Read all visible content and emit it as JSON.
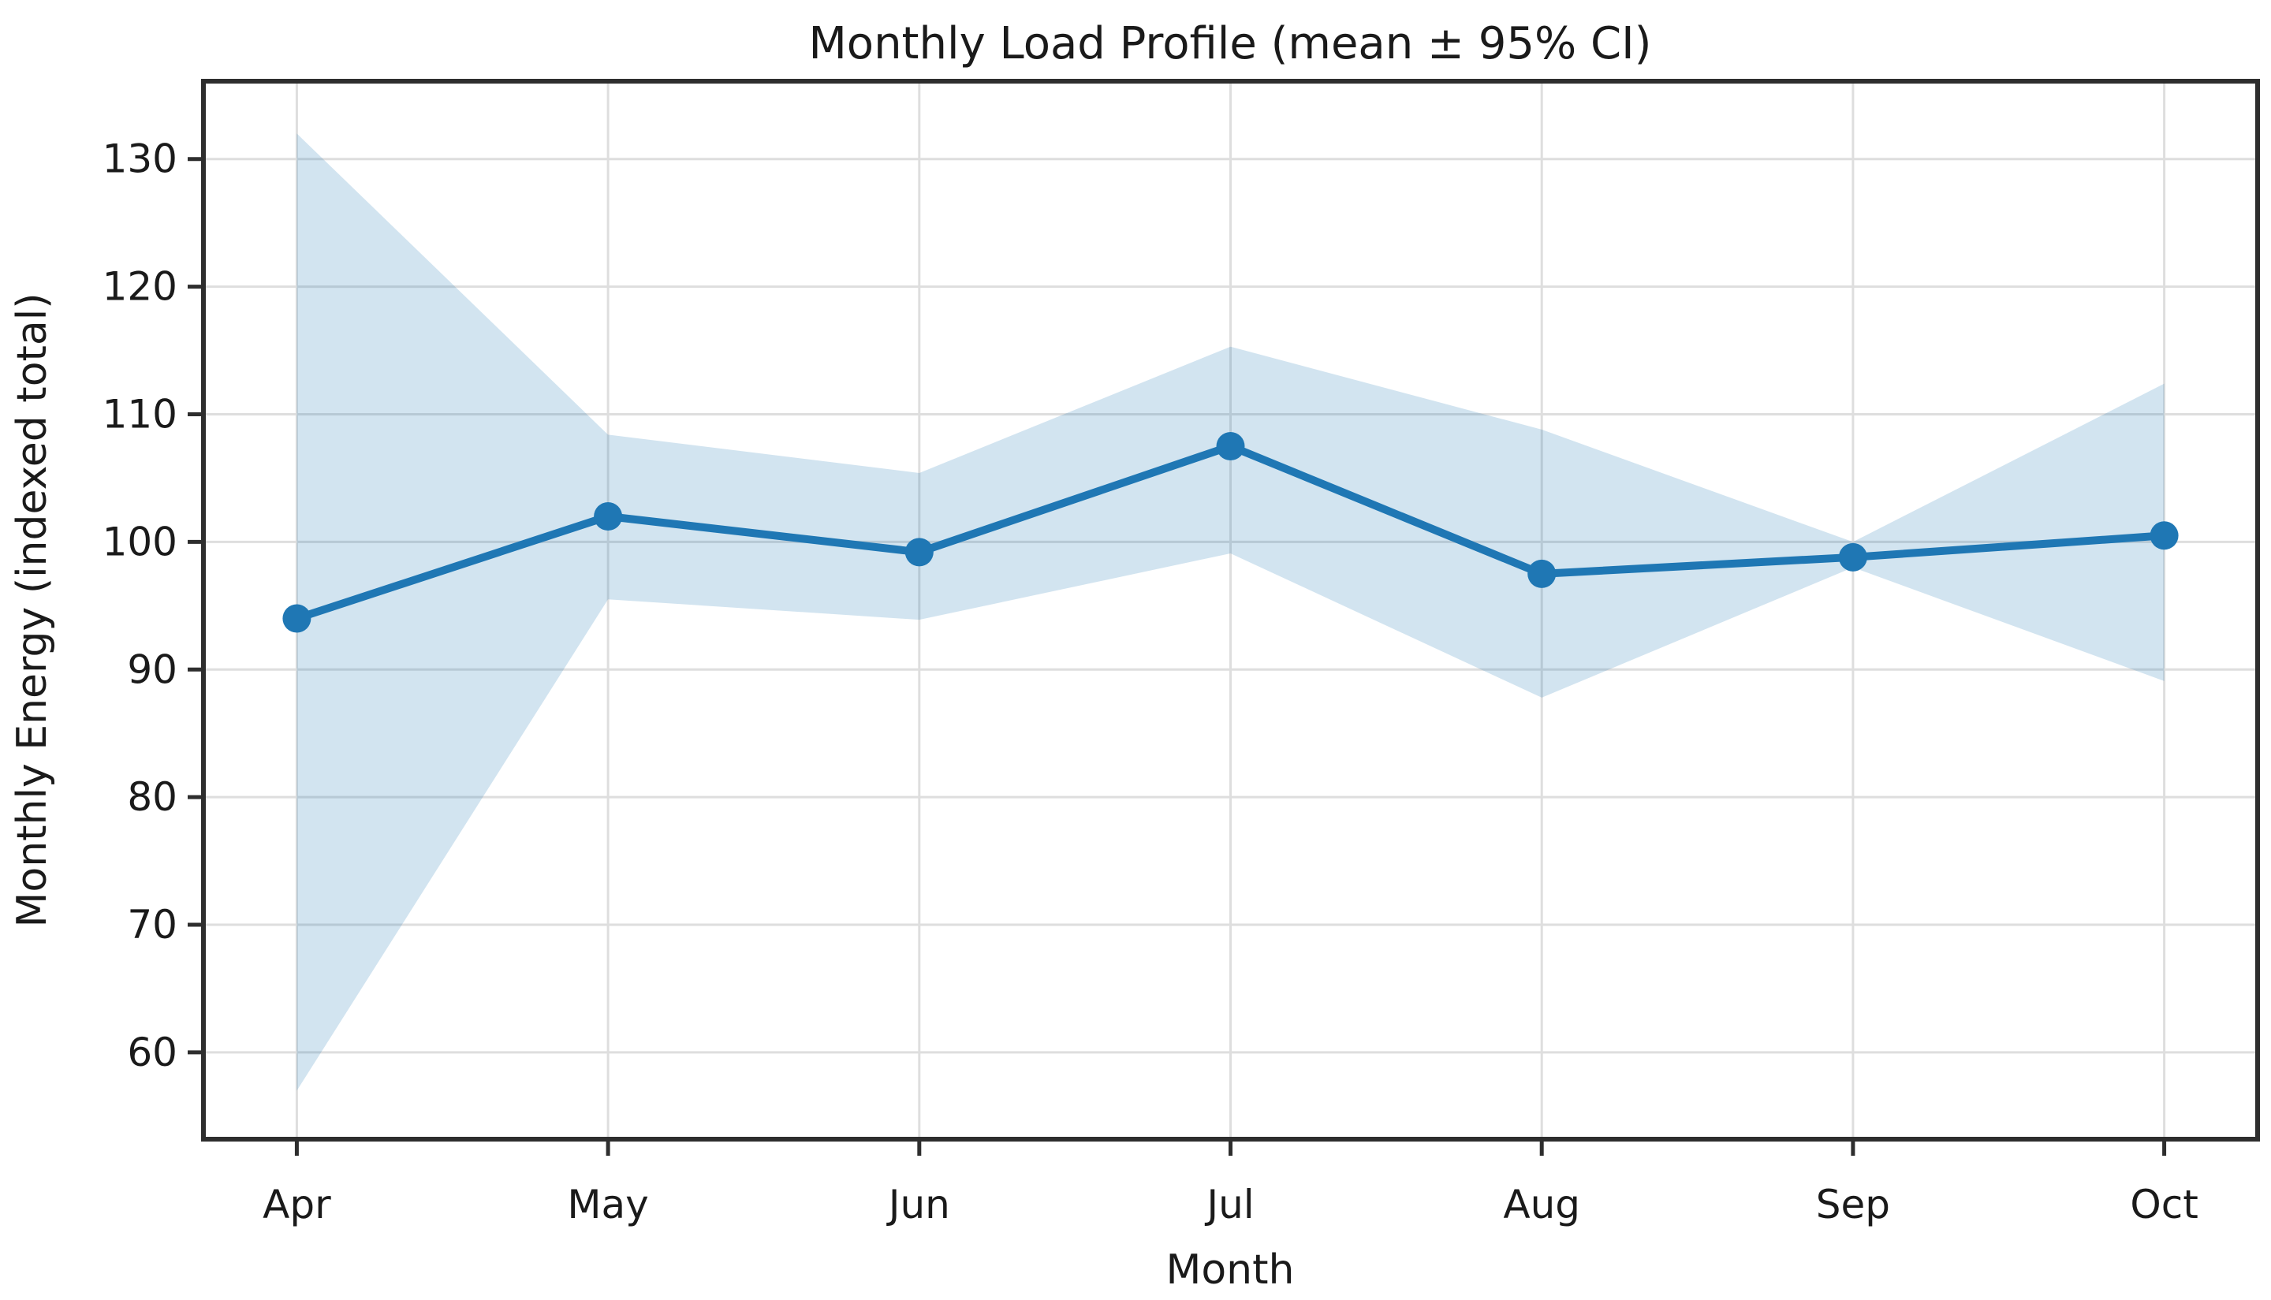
{
  "page": {
    "background": "#ffffff"
  },
  "chart_data": {
    "type": "line",
    "title": "Monthly Load Profile (mean ± 95% CI)",
    "xlabel": "Month",
    "ylabel": "Monthly Energy (indexed total)",
    "categories": [
      "Apr",
      "May",
      "Jun",
      "Jul",
      "Aug",
      "Sep",
      "Oct"
    ],
    "series": [
      {
        "name": "mean",
        "values": [
          94.0,
          102.0,
          99.2,
          107.5,
          97.5,
          98.8,
          100.5
        ]
      },
      {
        "name": "ci_lower",
        "values": [
          57.0,
          95.5,
          93.9,
          99.1,
          87.8,
          98.0,
          89.1
        ]
      },
      {
        "name": "ci_upper",
        "values": [
          132.0,
          108.4,
          105.4,
          115.3,
          108.8,
          100.0,
          112.4
        ]
      }
    ],
    "yticks": [
      60,
      70,
      80,
      90,
      100,
      110,
      120,
      130
    ],
    "ylim": [
      53.2,
      136.1
    ],
    "xlim": [
      -0.3,
      6.3
    ],
    "grid": true,
    "legend": "none",
    "marker": "circle",
    "colors": {
      "line": "#1f77b4",
      "band_fill": "#1f77b4",
      "band_opacity": 0.2,
      "grid": "#dedede",
      "spine": "#2e2e2e",
      "text": "#1a1a1a"
    }
  }
}
